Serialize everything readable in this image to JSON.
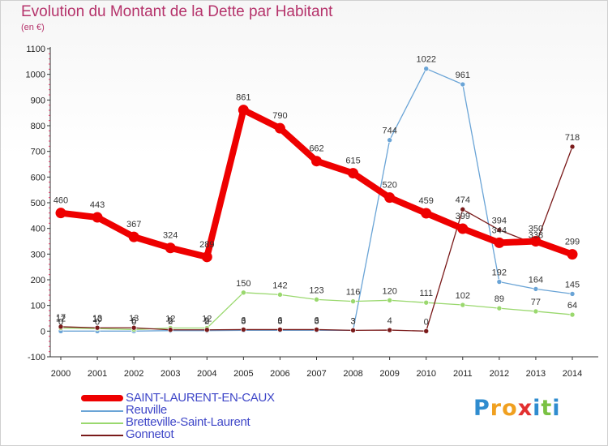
{
  "chart_data": {
    "type": "line",
    "title": "Evolution du Montant de la Dette par Habitant",
    "subtitle": "(en €)",
    "x": [
      "2000",
      "2001",
      "2002",
      "2003",
      "2004",
      "2005",
      "2006",
      "2007",
      "2008",
      "2009",
      "2010",
      "2011",
      "2012",
      "2013",
      "2014"
    ],
    "yticks": [
      "-100",
      "0",
      "100",
      "200",
      "300",
      "400",
      "500",
      "600",
      "700",
      "800",
      "900",
      "1000",
      "1100"
    ],
    "ylim": [
      -100,
      1100
    ],
    "grid": false,
    "legend_position": "bottom-left",
    "series": [
      {
        "name": "SAINT-LAURENT-EN-CAUX",
        "color": "#ee0000",
        "values": [
          460,
          443,
          367,
          324,
          289,
          861,
          790,
          662,
          615,
          520,
          459,
          399,
          344,
          350,
          299
        ],
        "labels": [
          "460",
          "443",
          "367",
          "324",
          "289",
          "861",
          "790",
          "662",
          "615",
          "520",
          "459",
          "399",
          "344",
          "350",
          "299"
        ]
      },
      {
        "name": "Reuville",
        "color": "#6aa4d6",
        "values": [
          0,
          0,
          0,
          2,
          2,
          3,
          3,
          3,
          3,
          744,
          1022,
          961,
          192,
          164,
          145
        ],
        "labels": [
          "0",
          "0",
          "0",
          "2",
          "2",
          "3",
          "3",
          "3",
          "3",
          "744",
          "1022",
          "961",
          "192",
          "164",
          "145"
        ]
      },
      {
        "name": "Bretteville-Saint-Laurent",
        "color": "#9ad86e",
        "values": [
          12,
          10,
          6,
          12,
          12,
          150,
          142,
          123,
          116,
          120,
          111,
          102,
          89,
          77,
          64
        ],
        "labels": [
          "12",
          "10",
          "6",
          "12",
          "12",
          "150",
          "142",
          "123",
          "116",
          "120",
          "111",
          "102",
          "89",
          "77",
          "64"
        ]
      },
      {
        "name": "Gonnetot",
        "color": "#7a1a1a",
        "values": [
          17,
          13,
          13,
          5,
          5,
          6,
          6,
          6,
          3,
          4,
          0,
          474,
          394,
          338,
          718
        ],
        "labels": [
          "17",
          "13",
          "13",
          "5",
          "5",
          "6",
          "6",
          "6",
          "3",
          "4",
          "0",
          "474",
          "394",
          "338",
          "718"
        ]
      }
    ]
  },
  "logo": {
    "letters": [
      "P",
      "r",
      "o",
      "x",
      "i",
      "t",
      "i"
    ],
    "colors": [
      "#2f8ccf",
      "#f0a020",
      "#f0a020",
      "#e23030",
      "#2f8ccf",
      "#7ac143",
      "#2f8ccf"
    ]
  }
}
